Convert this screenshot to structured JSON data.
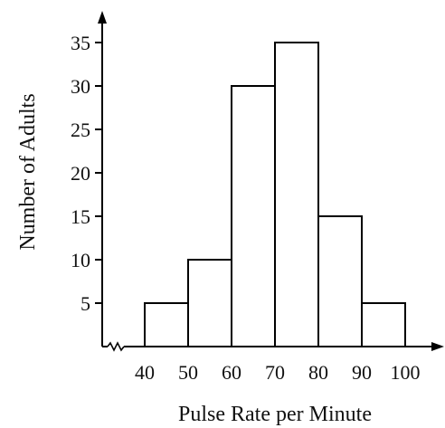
{
  "chart_data": {
    "type": "bar",
    "style": "histogram",
    "bins": [
      {
        "from": 40,
        "to": 50,
        "value": 5
      },
      {
        "from": 50,
        "to": 60,
        "value": 10
      },
      {
        "from": 60,
        "to": 70,
        "value": 30
      },
      {
        "from": 70,
        "to": 80,
        "value": 35
      },
      {
        "from": 80,
        "to": 90,
        "value": 15
      },
      {
        "from": 90,
        "to": 100,
        "value": 5
      }
    ],
    "x_ticks": [
      "40",
      "50",
      "60",
      "70",
      "80",
      "90",
      "100"
    ],
    "y_ticks": [
      "5",
      "10",
      "15",
      "20",
      "25",
      "30",
      "35"
    ],
    "xlabel": "Pulse Rate per Minute",
    "ylabel": "Number of Adults",
    "xlim": [
      40,
      100
    ],
    "ylim": [
      0,
      35
    ],
    "x_axis_break": true,
    "grid": false,
    "colors": {
      "bar_fill": "#ffffff",
      "stroke": "#000000"
    }
  }
}
